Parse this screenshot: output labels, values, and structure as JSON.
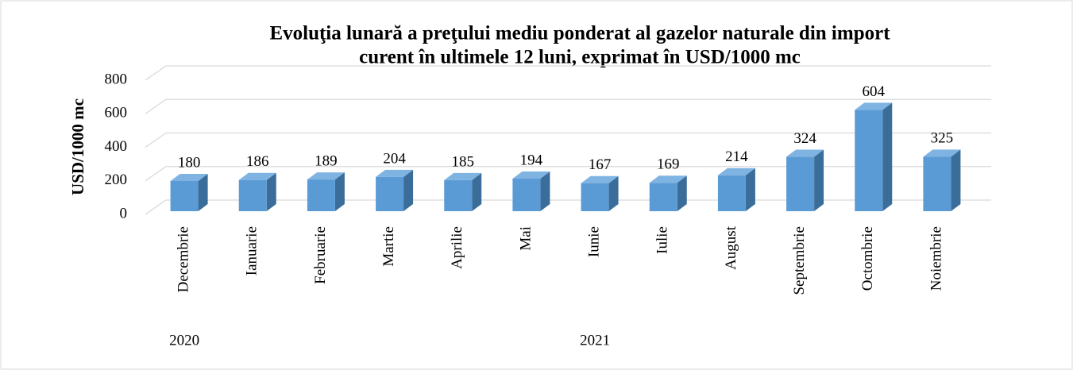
{
  "chart_data": {
    "type": "bar3d",
    "title": [
      "Evoluţia lunară a preţului mediu ponderat al gazelor naturale din import",
      "curent în ultimele 12 luni, exprimat în USD/1000 mc"
    ],
    "y_label": "USD/1000 mc",
    "categories": [
      "Decembrie",
      "Ianuarie",
      "Februarie",
      "Martie",
      "Aprilie",
      "Mai",
      "Iunie",
      "Iulie",
      "August",
      "Septembrie",
      "Octombrie",
      "Noiembrie"
    ],
    "category_groups": [
      {
        "label": "2020",
        "count": 1
      },
      {
        "label": "2021",
        "count": 11
      }
    ],
    "values": [
      180,
      186,
      189,
      204,
      185,
      194,
      167,
      169,
      214,
      324,
      604,
      325
    ],
    "color": "#5b9bd5",
    "ylim": [
      0,
      800
    ],
    "yticks": [
      0,
      200,
      400,
      600,
      800
    ],
    "grid": true
  }
}
